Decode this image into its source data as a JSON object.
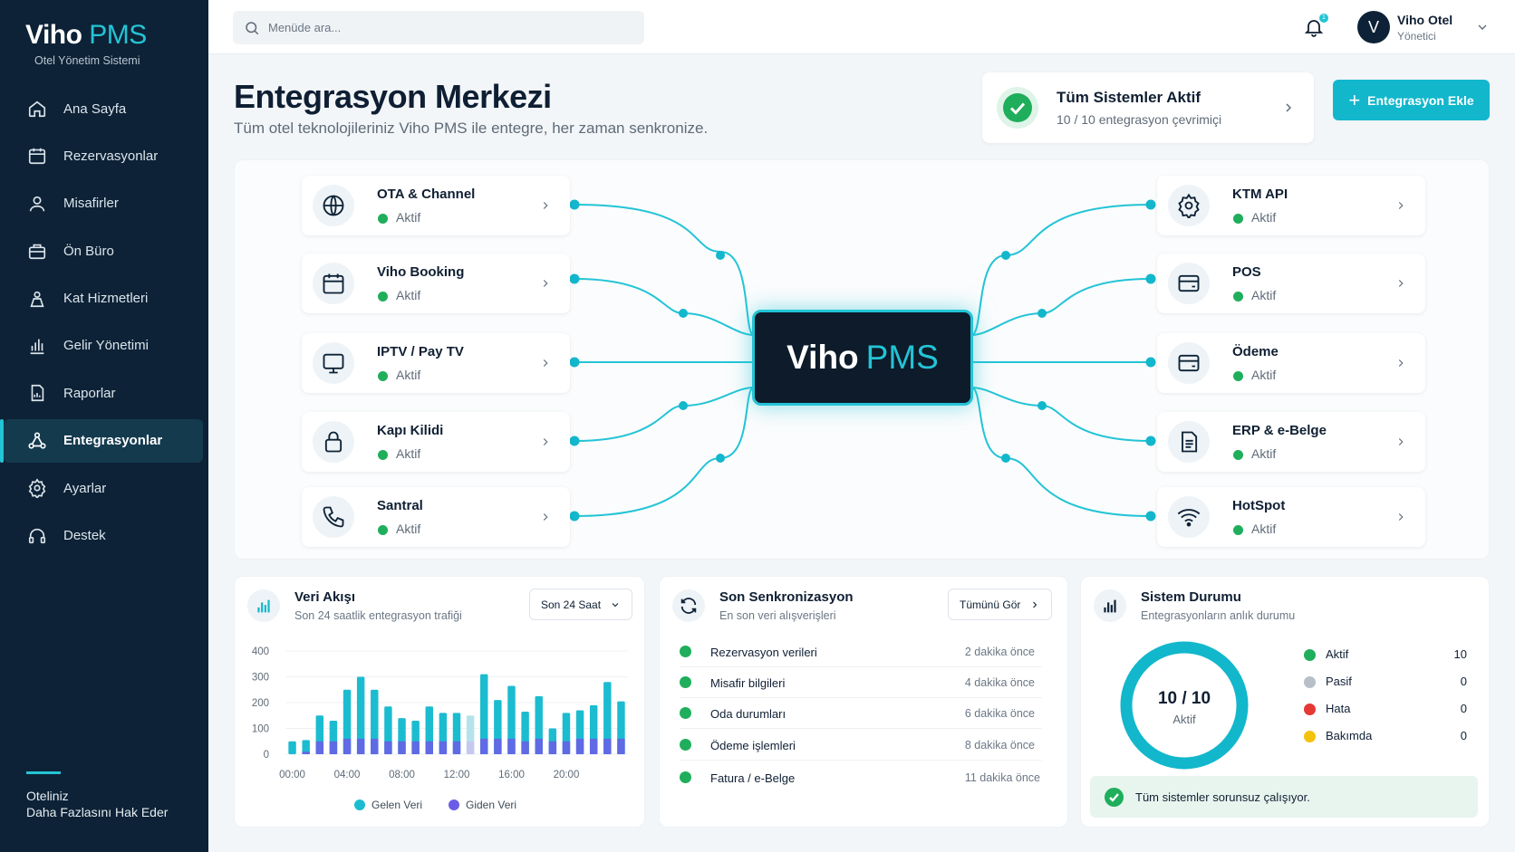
{
  "brand": {
    "name": "Viho",
    "accent": "PMS",
    "subtitle": "Otel Yönetim Sistemi"
  },
  "nav": [
    {
      "label": "Ana Sayfa",
      "icon": "home"
    },
    {
      "label": "Rezervasyonlar",
      "icon": "calendar"
    },
    {
      "label": "Misafirler",
      "icon": "user"
    },
    {
      "label": "Ön Büro",
      "icon": "briefcase"
    },
    {
      "label": "Kat Hizmetleri",
      "icon": "housekeeping"
    },
    {
      "label": "Gelir Yönetimi",
      "icon": "bar-chart"
    },
    {
      "label": "Raporlar",
      "icon": "report"
    },
    {
      "label": "Entegrasyonlar",
      "icon": "integrations",
      "active": true
    },
    {
      "label": "Ayarlar",
      "icon": "gear"
    },
    {
      "label": "Destek",
      "icon": "headset"
    }
  ],
  "sidebar_footer": {
    "line1": "Oteliniz",
    "line2": "Daha Fazlasını Hak Eder"
  },
  "topbar": {
    "search_placeholder": "Menüde ara...",
    "notification_count": "1",
    "user_initial": "V",
    "user_name": "Viho Otel",
    "user_role": "Yönetici"
  },
  "header": {
    "title": "Entegrasyon Merkezi",
    "subtitle": "Tüm otel teknolojileriniz Viho PMS ile entegre, her zaman senkronize."
  },
  "status_card": {
    "title": "Tüm Sistemler Aktif",
    "subtitle": "10 / 10 entegrasyon çevrimiçi"
  },
  "add_button": "Entegrasyon Ekle",
  "hub": {
    "name": "Viho",
    "accent": "PMS"
  },
  "integrations_left": [
    {
      "name": "OTA & Channel",
      "status": "Aktif",
      "icon": "globe"
    },
    {
      "name": "Viho Booking",
      "status": "Aktif",
      "icon": "calendar"
    },
    {
      "name": "IPTV / Pay TV",
      "status": "Aktif",
      "icon": "monitor"
    },
    {
      "name": "Kapı Kilidi",
      "status": "Aktif",
      "icon": "lock"
    },
    {
      "name": "Santral",
      "status": "Aktif",
      "icon": "phone"
    }
  ],
  "integrations_right": [
    {
      "name": "KTM API",
      "status": "Aktif",
      "icon": "gear"
    },
    {
      "name": "POS",
      "status": "Aktif",
      "icon": "card"
    },
    {
      "name": "Ödeme",
      "status": "Aktif",
      "icon": "card"
    },
    {
      "name": "ERP & e-Belge",
      "status": "Aktif",
      "icon": "document"
    },
    {
      "name": "HotSpot",
      "status": "Aktif",
      "icon": "wifi"
    }
  ],
  "data_flow": {
    "title": "Veri Akışı",
    "subtitle": "Son 24 saatlik entegrasyon trafiği",
    "range": "Son 24 Saat"
  },
  "chart_data": {
    "type": "bar",
    "stacked": true,
    "x": [
      "00:00",
      "01:00",
      "02:00",
      "03:00",
      "04:00",
      "05:00",
      "06:00",
      "07:00",
      "08:00",
      "09:00",
      "10:00",
      "11:00",
      "12:00",
      "13:00",
      "14:00",
      "15:00",
      "16:00",
      "17:00",
      "18:00",
      "19:00",
      "20:00",
      "21:00",
      "22:00",
      "23:00",
      "24:00"
    ],
    "xticks": [
      "00:00",
      "04:00",
      "08:00",
      "12:00",
      "16:00",
      "20:00"
    ],
    "yticks": [
      0,
      100,
      200,
      300,
      400
    ],
    "ylim": [
      0,
      400
    ],
    "series": [
      {
        "name": "Gelen Veri",
        "color": "#1cbcd0",
        "values": [
          50,
          55,
          150,
          130,
          250,
          300,
          250,
          185,
          140,
          130,
          185,
          160,
          160,
          150,
          310,
          210,
          265,
          165,
          225,
          100,
          160,
          170,
          190,
          280,
          205
        ]
      },
      {
        "name": "Giden Veri",
        "color": "#6b5ce7",
        "values": [
          0,
          10,
          50,
          50,
          60,
          60,
          60,
          50,
          50,
          50,
          50,
          50,
          50,
          50,
          60,
          60,
          60,
          50,
          60,
          50,
          50,
          60,
          60,
          60,
          60
        ]
      }
    ],
    "highlight_index": 13
  },
  "sync": {
    "title": "Son Senkronizasyon",
    "subtitle": "En son veri alışverişleri",
    "button": "Tümünü Gör",
    "items": [
      {
        "name": "Rezervasyon verileri",
        "time": "2 dakika önce"
      },
      {
        "name": "Misafir bilgileri",
        "time": "4 dakika önce"
      },
      {
        "name": "Oda durumları",
        "time": "6 dakika önce"
      },
      {
        "name": "Ödeme işlemleri",
        "time": "8 dakika önce"
      },
      {
        "name": "Fatura / e-Belge",
        "time": "11 dakika önce"
      }
    ]
  },
  "system_status": {
    "title": "Sistem Durumu",
    "subtitle": "Entegrasyonların anlık durumu",
    "donut_value": "10 / 10",
    "donut_label": "Aktif",
    "legend": [
      {
        "name": "Aktif",
        "count": "10",
        "color": "#1fae5b"
      },
      {
        "name": "Pasif",
        "count": "0",
        "color": "#b7c0c9"
      },
      {
        "name": "Hata",
        "count": "0",
        "color": "#e53935"
      },
      {
        "name": "Bakımda",
        "count": "0",
        "color": "#f4c20d"
      }
    ],
    "ok_message": "Tüm sistemler sorunsuz çalışıyor."
  }
}
